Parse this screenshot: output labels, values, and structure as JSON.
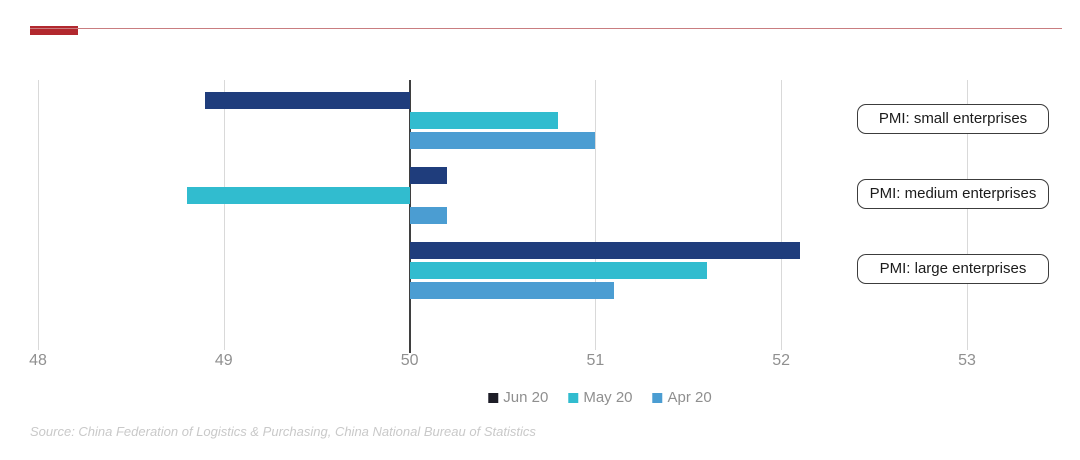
{
  "header": {
    "accent_bar_color": "#b2282e",
    "rule_color": "#c97d80"
  },
  "chart_data": {
    "type": "bar",
    "orientation": "horizontal",
    "title": "",
    "categories": [
      "PMI: small enterprises",
      "PMI: medium enterprises",
      "PMI: large enterprises"
    ],
    "series": [
      {
        "name": "Jun 20",
        "color": "#1f3d7c",
        "legend_color": "#1d1d27",
        "values": [
          48.9,
          50.2,
          52.1
        ]
      },
      {
        "name": "May 20",
        "color": "#31bccf",
        "values": [
          50.8,
          48.8,
          51.6
        ]
      },
      {
        "name": "Apr 20",
        "color": "#4b9dd2",
        "values": [
          51.0,
          50.2,
          51.1
        ]
      }
    ],
    "x_axis": {
      "min": 48,
      "max": 53,
      "ticks": [
        48,
        49,
        50,
        51,
        52,
        53
      ],
      "baseline": 50
    },
    "grid": true,
    "legend_position": "bottom",
    "axis_text_color": "#909090",
    "gridline_color": "#d9d9d9",
    "baseline_color": "#3f3f3f"
  },
  "source_note": "Source: China Federation of Logistics & Purchasing, China National Bureau of Statistics"
}
